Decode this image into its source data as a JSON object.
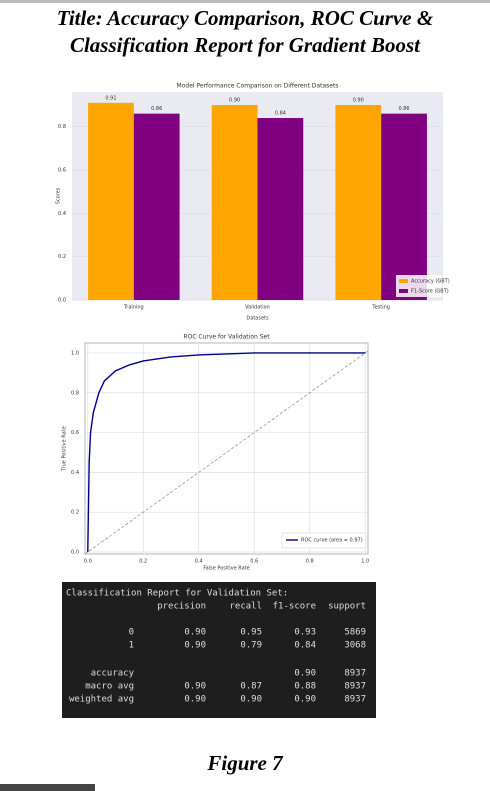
{
  "title_lines": [
    "Title: Accuracy Comparison, ROC Curve &",
    "Classification Report for Gradient Boost"
  ],
  "chart_data": [
    {
      "type": "bar",
      "title": "Model Performance Comparison on Different Datasets",
      "xlabel": "Datasets",
      "ylabel": "Scores",
      "categories": [
        "Training",
        "Validation",
        "Testing"
      ],
      "series": [
        {
          "name": "Accuracy (GBT)",
          "color": "#ffa500",
          "values": [
            0.91,
            0.9,
            0.9
          ],
          "value_labels": [
            "0.91",
            "0.90",
            "0.90"
          ]
        },
        {
          "name": "F1-Score (GBT)",
          "color": "#800080",
          "values": [
            0.86,
            0.84,
            0.86
          ],
          "value_labels": [
            "0.86",
            "0.84",
            "0.86"
          ]
        }
      ],
      "ylim": [
        0,
        0.96
      ],
      "yticks": [
        {
          "value": 0,
          "label": "0.0"
        },
        0.2,
        0.4,
        0.6,
        0.8
      ],
      "grid": true,
      "legend": "lower right"
    },
    {
      "type": "line",
      "title": "ROC Curve for Validation Set",
      "xlabel": "False Positive Rate",
      "ylabel": "True Positive Rate",
      "x": [
        0,
        0.005,
        0.01,
        0.02,
        0.04,
        0.06,
        0.1,
        0.15,
        0.2,
        0.3,
        0.4,
        0.6,
        0.8,
        1.0
      ],
      "series": [
        {
          "name": "ROC curve (area = 0.97)",
          "color": "#00008b",
          "values": [
            0,
            0.45,
            0.6,
            0.7,
            0.8,
            0.86,
            0.91,
            0.94,
            0.96,
            0.98,
            0.99,
            1.0,
            1.0,
            1.0
          ]
        }
      ],
      "xlim": [
        -0.01,
        1.01
      ],
      "ylim": [
        -0.01,
        1.05
      ],
      "xticks": [
        {
          "value": 0,
          "label": "0.0"
        },
        0.2,
        0.4,
        0.6,
        0.8,
        {
          "value": 1,
          "label": "1.0"
        }
      ],
      "yticks": [
        {
          "value": 0,
          "label": "0.0"
        },
        0.2,
        0.4,
        0.6,
        0.8,
        {
          "value": 1,
          "label": "1.0"
        }
      ],
      "grid": true,
      "legend": "lower right"
    }
  ],
  "report": {
    "title": "Classification Report for Validation Set:",
    "header": [
      "precision",
      "recall",
      "f1-score",
      "support"
    ],
    "rows": [
      [
        "0",
        "0.90",
        "0.95",
        "0.93",
        "5869"
      ],
      [
        "1",
        "0.90",
        "0.79",
        "0.84",
        "3068"
      ],
      [
        "accuracy",
        null,
        null,
        "0.90",
        "8937"
      ],
      [
        "macro avg",
        "0.90",
        "0.87",
        "0.88",
        "8937"
      ],
      [
        "weighted avg",
        "0.90",
        "0.90",
        "0.90",
        "8937"
      ]
    ]
  },
  "caption": "Figure 7"
}
